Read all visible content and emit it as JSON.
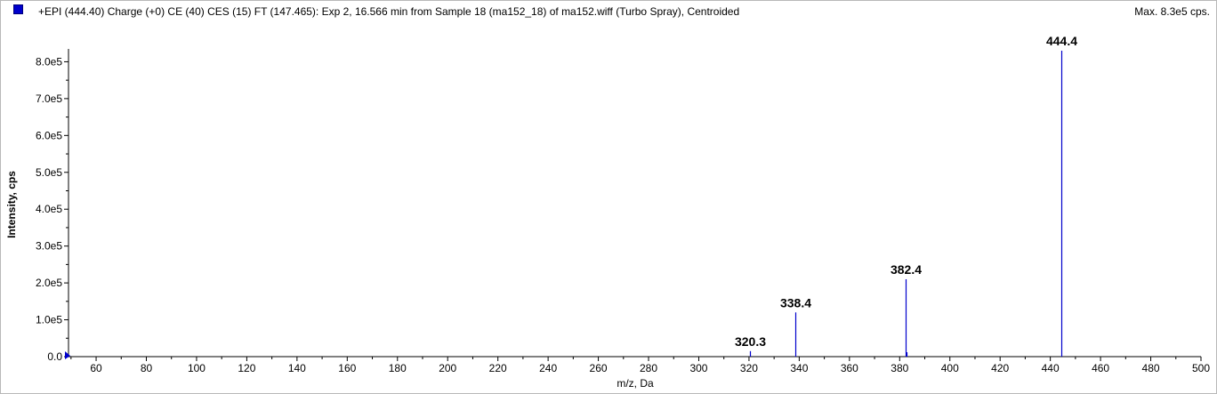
{
  "header": {
    "title": "+EPI (444.40) Charge (+0) CE (40) CES (15) FT (147.465): Exp 2, 16.566 min from Sample 18 (ma152_18) of ma152.wiff (Turbo Spray), Centroided",
    "max_label": "Max. 8.3e5 cps.",
    "series_color": "#0000cc"
  },
  "chart_data": {
    "type": "bar",
    "title": "+EPI (444.40) Charge (+0) CE (40) CES (15) FT (147.465): Exp 2, 16.566 min from Sample 18 (ma152_18) of ma152.wiff (Turbo Spray), Centroided",
    "xlabel": "m/z, Da",
    "ylabel": "Intensity, cps",
    "xlim": [
      49,
      500
    ],
    "ylim": [
      0,
      830000
    ],
    "x_ticks": [
      "60",
      "80",
      "100",
      "120",
      "140",
      "160",
      "180",
      "200",
      "220",
      "240",
      "260",
      "280",
      "300",
      "320",
      "340",
      "360",
      "380",
      "400",
      "420",
      "440",
      "460",
      "480",
      "500"
    ],
    "y_ticks": [
      "0.0",
      "1.0e5",
      "2.0e5",
      "3.0e5",
      "4.0e5",
      "5.0e5",
      "6.0e5",
      "7.0e5",
      "8.0e5"
    ],
    "peaks": [
      {
        "mz": 320.3,
        "intensity": 15000,
        "label": "320.3"
      },
      {
        "mz": 338.4,
        "intensity": 120000,
        "label": "338.4"
      },
      {
        "mz": 382.4,
        "intensity": 210000,
        "label": "382.4"
      },
      {
        "mz": 382.9,
        "intensity": 12000,
        "label": ""
      },
      {
        "mz": 444.4,
        "intensity": 830000,
        "label": "444.4"
      }
    ]
  }
}
